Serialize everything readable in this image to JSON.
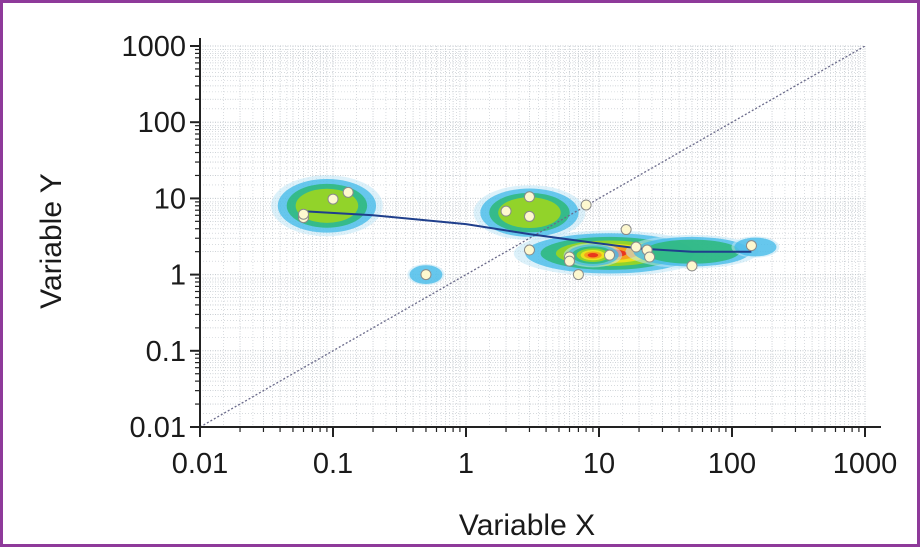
{
  "chart_data": {
    "type": "scatter",
    "xlabel": "Variable X",
    "ylabel": "Variable Y",
    "x_scale": "log",
    "y_scale": "log",
    "xlim": [
      0.01,
      1000
    ],
    "ylim": [
      0.01,
      1000
    ],
    "x_ticks": [
      {
        "value": 0.01,
        "label": "0.01"
      },
      {
        "value": 0.1,
        "label": "0.1"
      },
      {
        "value": 1,
        "label": "1"
      },
      {
        "value": 10,
        "label": "10"
      },
      {
        "value": 100,
        "label": "100"
      },
      {
        "value": 1000,
        "label": "1000"
      }
    ],
    "y_ticks": [
      {
        "value": 0.01,
        "label": "0.01"
      },
      {
        "value": 0.1,
        "label": "0.1"
      },
      {
        "value": 1,
        "label": "1"
      },
      {
        "value": 10,
        "label": "10"
      },
      {
        "value": 100,
        "label": "100"
      },
      {
        "value": 1000,
        "label": "1000"
      }
    ],
    "grid": true,
    "points": [
      {
        "x": 0.06,
        "y": 5.6
      },
      {
        "x": 0.06,
        "y": 6.2
      },
      {
        "x": 0.1,
        "y": 9.8
      },
      {
        "x": 0.13,
        "y": 12
      },
      {
        "x": 0.5,
        "y": 1.0
      },
      {
        "x": 2.0,
        "y": 6.8
      },
      {
        "x": 3.0,
        "y": 10.5
      },
      {
        "x": 3.0,
        "y": 5.8
      },
      {
        "x": 3.0,
        "y": 2.1
      },
      {
        "x": 6.0,
        "y": 1.7
      },
      {
        "x": 6.0,
        "y": 1.5
      },
      {
        "x": 7.0,
        "y": 1.0
      },
      {
        "x": 8.0,
        "y": 8.2
      },
      {
        "x": 12,
        "y": 1.8
      },
      {
        "x": 16,
        "y": 3.9
      },
      {
        "x": 19,
        "y": 2.3
      },
      {
        "x": 23,
        "y": 2.1
      },
      {
        "x": 24,
        "y": 1.7
      },
      {
        "x": 50,
        "y": 1.3
      },
      {
        "x": 140,
        "y": 2.4
      }
    ],
    "trend_line": [
      {
        "x": 0.06,
        "y": 6.8
      },
      {
        "x": 0.2,
        "y": 6.0
      },
      {
        "x": 1.0,
        "y": 4.6
      },
      {
        "x": 3.0,
        "y": 3.4
      },
      {
        "x": 8.0,
        "y": 2.7
      },
      {
        "x": 20,
        "y": 2.2
      },
      {
        "x": 50,
        "y": 2.0
      },
      {
        "x": 140,
        "y": 2.0
      }
    ],
    "identity_line": [
      {
        "x": 0.01,
        "y": 0.01
      },
      {
        "x": 1000,
        "y": 1000
      }
    ],
    "density_blobs": [
      {
        "cx": 0.09,
        "cy": 8.0,
        "rx_decades": 0.42,
        "ry_decades": 0.4,
        "peak": 0.6
      },
      {
        "cx": 0.5,
        "cy": 1.0,
        "rx_decades": 0.14,
        "ry_decades": 0.14,
        "peak": 0.3
      },
      {
        "cx": 3.0,
        "cy": 6.5,
        "rx_decades": 0.42,
        "ry_decades": 0.36,
        "peak": 0.6
      },
      {
        "cx": 12,
        "cy": 1.9,
        "rx_decades": 0.72,
        "ry_decades": 0.3,
        "peak": 1.0
      },
      {
        "cx": 9.0,
        "cy": 1.8,
        "rx_decades": 0.22,
        "ry_decades": 0.16,
        "peak": 0.95
      },
      {
        "cx": 50,
        "cy": 2.0,
        "rx_decades": 0.5,
        "ry_decades": 0.22,
        "peak": 0.45
      },
      {
        "cx": 150,
        "cy": 2.3,
        "rx_decades": 0.18,
        "ry_decades": 0.14,
        "peak": 0.3
      }
    ],
    "colors": {
      "frame": "#8e3a9a",
      "grid": "#c0c6cc",
      "axis": "#222222",
      "trend_line": "#1f3f8c",
      "identity_line": "#6a6a8a",
      "point_fill": "#fdf8cf",
      "point_stroke": "#8a8a8a",
      "heat_scale": [
        "#bfe6f5",
        "#3fb8e8",
        "#2db879",
        "#9cd61f",
        "#f5e21c",
        "#f79a1e",
        "#e8301c"
      ]
    }
  }
}
